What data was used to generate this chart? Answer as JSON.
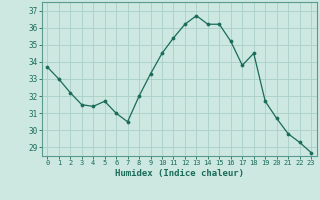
{
  "x": [
    0,
    1,
    2,
    3,
    4,
    5,
    6,
    7,
    8,
    9,
    10,
    11,
    12,
    13,
    14,
    15,
    16,
    17,
    18,
    19,
    20,
    21,
    22,
    23
  ],
  "y": [
    33.7,
    33.0,
    32.2,
    31.5,
    31.4,
    31.7,
    31.0,
    30.5,
    32.0,
    33.3,
    34.5,
    35.4,
    36.2,
    36.7,
    36.2,
    36.2,
    35.2,
    33.8,
    34.5,
    31.7,
    30.7,
    29.8,
    29.3,
    28.7
  ],
  "line_color": "#1a6b5a",
  "marker_color": "#1a6b5a",
  "bg_color": "#cce8e0",
  "grid_color": "#aacfc8",
  "xlabel": "Humidex (Indice chaleur)",
  "ylabel_ticks": [
    29,
    30,
    31,
    32,
    33,
    34,
    35,
    36,
    37
  ],
  "xlim": [
    -0.5,
    23.5
  ],
  "ylim": [
    28.5,
    37.5
  ],
  "xlabel_color": "#1a6b5a",
  "tick_color": "#1a6b5a",
  "spine_color": "#5a9a90"
}
